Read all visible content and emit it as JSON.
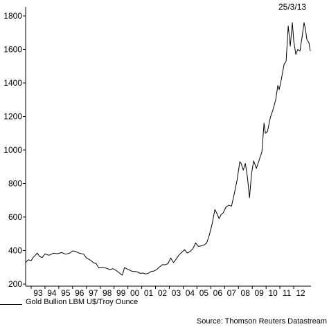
{
  "chart_data": {
    "type": "line",
    "date": "25/3/13",
    "source": "Source: Thomson Reuters Datastream",
    "xlabel": "",
    "ylabel": "",
    "ylim": [
      200,
      1800
    ],
    "xlim": [
      1992.6,
      2013.25
    ],
    "grid": false,
    "legend_position": "bottom-left",
    "yticks": [
      200,
      400,
      600,
      800,
      1000,
      1200,
      1400,
      1600,
      1800
    ],
    "xticks": [
      {
        "label": "93",
        "year": 1993
      },
      {
        "label": "94",
        "year": 1994
      },
      {
        "label": "95",
        "year": 1995
      },
      {
        "label": "96",
        "year": 1996
      },
      {
        "label": "97",
        "year": 1997
      },
      {
        "label": "98",
        "year": 1998
      },
      {
        "label": "99",
        "year": 1999
      },
      {
        "label": "00",
        "year": 2000
      },
      {
        "label": "01",
        "year": 2001
      },
      {
        "label": "02",
        "year": 2002
      },
      {
        "label": "03",
        "year": 2003
      },
      {
        "label": "04",
        "year": 2004
      },
      {
        "label": "05",
        "year": 2005
      },
      {
        "label": "06",
        "year": 2006
      },
      {
        "label": "07",
        "year": 2007
      },
      {
        "label": "08",
        "year": 2008
      },
      {
        "label": "09",
        "year": 2009
      },
      {
        "label": "10",
        "year": 2010
      },
      {
        "label": "11",
        "year": 2011
      },
      {
        "label": "12",
        "year": 2012
      }
    ],
    "series": [
      {
        "name": "Gold Bullion LBM U$/Troy Ounce",
        "color": "#000000",
        "points": [
          [
            1992.6,
            330
          ],
          [
            1992.8,
            345
          ],
          [
            1993.0,
            340
          ],
          [
            1993.15,
            360
          ],
          [
            1993.3,
            372
          ],
          [
            1993.45,
            385
          ],
          [
            1993.6,
            365
          ],
          [
            1993.8,
            358
          ],
          [
            1994.0,
            380
          ],
          [
            1994.3,
            372
          ],
          [
            1994.6,
            384
          ],
          [
            1994.9,
            381
          ],
          [
            1995.2,
            388
          ],
          [
            1995.5,
            378
          ],
          [
            1995.8,
            385
          ],
          [
            1996.0,
            398
          ],
          [
            1996.2,
            395
          ],
          [
            1996.5,
            384
          ],
          [
            1996.8,
            378
          ],
          [
            1997.0,
            356
          ],
          [
            1997.3,
            342
          ],
          [
            1997.5,
            328
          ],
          [
            1997.7,
            322
          ],
          [
            1997.9,
            296
          ],
          [
            1998.1,
            298
          ],
          [
            1998.4,
            296
          ],
          [
            1998.7,
            286
          ],
          [
            1998.9,
            292
          ],
          [
            1999.1,
            284
          ],
          [
            1999.3,
            272
          ],
          [
            1999.5,
            258
          ],
          [
            1999.6,
            254
          ],
          [
            1999.75,
            298
          ],
          [
            1999.9,
            292
          ],
          [
            2000.1,
            285
          ],
          [
            2000.3,
            276
          ],
          [
            2000.5,
            276
          ],
          [
            2000.7,
            272
          ],
          [
            2000.9,
            264
          ],
          [
            2001.1,
            266
          ],
          [
            2001.3,
            260
          ],
          [
            2001.5,
            266
          ],
          [
            2001.7,
            276
          ],
          [
            2001.9,
            278
          ],
          [
            2002.1,
            288
          ],
          [
            2002.3,
            303
          ],
          [
            2002.5,
            316
          ],
          [
            2002.7,
            315
          ],
          [
            2002.9,
            322
          ],
          [
            2003.1,
            356
          ],
          [
            2003.3,
            328
          ],
          [
            2003.5,
            350
          ],
          [
            2003.7,
            374
          ],
          [
            2003.9,
            390
          ],
          [
            2004.1,
            405
          ],
          [
            2004.3,
            385
          ],
          [
            2004.5,
            395
          ],
          [
            2004.7,
            410
          ],
          [
            2004.9,
            445
          ],
          [
            2005.1,
            425
          ],
          [
            2005.3,
            428
          ],
          [
            2005.5,
            432
          ],
          [
            2005.7,
            445
          ],
          [
            2005.9,
            495
          ],
          [
            2006.1,
            560
          ],
          [
            2006.3,
            645
          ],
          [
            2006.45,
            620
          ],
          [
            2006.6,
            590
          ],
          [
            2006.75,
            615
          ],
          [
            2006.9,
            625
          ],
          [
            2007.1,
            660
          ],
          [
            2007.3,
            670
          ],
          [
            2007.5,
            665
          ],
          [
            2007.7,
            740
          ],
          [
            2007.9,
            820
          ],
          [
            2008.1,
            930
          ],
          [
            2008.2,
            920
          ],
          [
            2008.35,
            880
          ],
          [
            2008.5,
            920
          ],
          [
            2008.65,
            840
          ],
          [
            2008.8,
            715
          ],
          [
            2008.95,
            860
          ],
          [
            2009.1,
            935
          ],
          [
            2009.3,
            890
          ],
          [
            2009.5,
            940
          ],
          [
            2009.7,
            990
          ],
          [
            2009.85,
            1160
          ],
          [
            2009.95,
            1100
          ],
          [
            2010.1,
            1110
          ],
          [
            2010.3,
            1190
          ],
          [
            2010.5,
            1240
          ],
          [
            2010.7,
            1300
          ],
          [
            2010.85,
            1385
          ],
          [
            2010.95,
            1360
          ],
          [
            2011.1,
            1420
          ],
          [
            2011.3,
            1510
          ],
          [
            2011.45,
            1530
          ],
          [
            2011.6,
            1740
          ],
          [
            2011.75,
            1620
          ],
          [
            2011.9,
            1760
          ],
          [
            2012.0,
            1650
          ],
          [
            2012.15,
            1570
          ],
          [
            2012.3,
            1600
          ],
          [
            2012.45,
            1590
          ],
          [
            2012.6,
            1670
          ],
          [
            2012.75,
            1760
          ],
          [
            2012.85,
            1720
          ],
          [
            2012.95,
            1660
          ],
          [
            2013.1,
            1640
          ],
          [
            2013.2,
            1590
          ]
        ]
      }
    ]
  }
}
